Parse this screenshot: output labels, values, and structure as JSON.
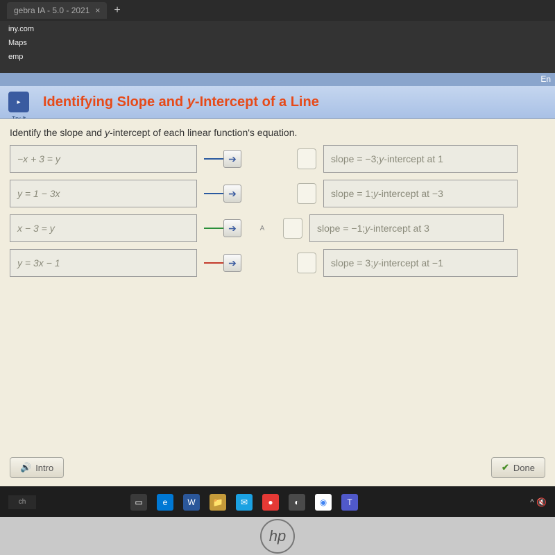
{
  "browser": {
    "tab_title": "gebra IA - 5.0 - 2021",
    "bookmarks": [
      "iny.com",
      "Maps",
      "emp"
    ],
    "right_label": "En"
  },
  "lesson": {
    "icon_label": "Try It",
    "title_prefix": "Identifying Slope and ",
    "title_italic": "y",
    "title_suffix": "-Intercept of a Line"
  },
  "instruction": {
    "prefix": "Identify the slope and ",
    "italic": "y",
    "suffix": "-intercept of each linear function's equation."
  },
  "equations": [
    {
      "text": "−x + 3 = y",
      "arrow_color": "blue"
    },
    {
      "text": "y = 1 − 3x",
      "arrow_color": "blue"
    },
    {
      "text": "x − 3 = y",
      "arrow_color": "green"
    },
    {
      "text": "y = 3x − 1",
      "arrow_color": "red"
    }
  ],
  "answers": [
    {
      "prefix": "slope = −3; ",
      "italic": "y",
      "suffix": "-intercept at 1"
    },
    {
      "prefix": "slope = 1; ",
      "italic": "y",
      "suffix": "-intercept at −3"
    },
    {
      "prefix": "slope = −1; ",
      "italic": "y",
      "suffix": "-intercept at 3"
    },
    {
      "prefix": "slope = 3; ",
      "italic": "y",
      "suffix": "-intercept at −1"
    }
  ],
  "mid_label": "A",
  "footer": {
    "intro": "Intro",
    "done": "Done"
  },
  "taskbar_left": "ch",
  "taskbar_right": "^",
  "laptop_brand": "hp"
}
